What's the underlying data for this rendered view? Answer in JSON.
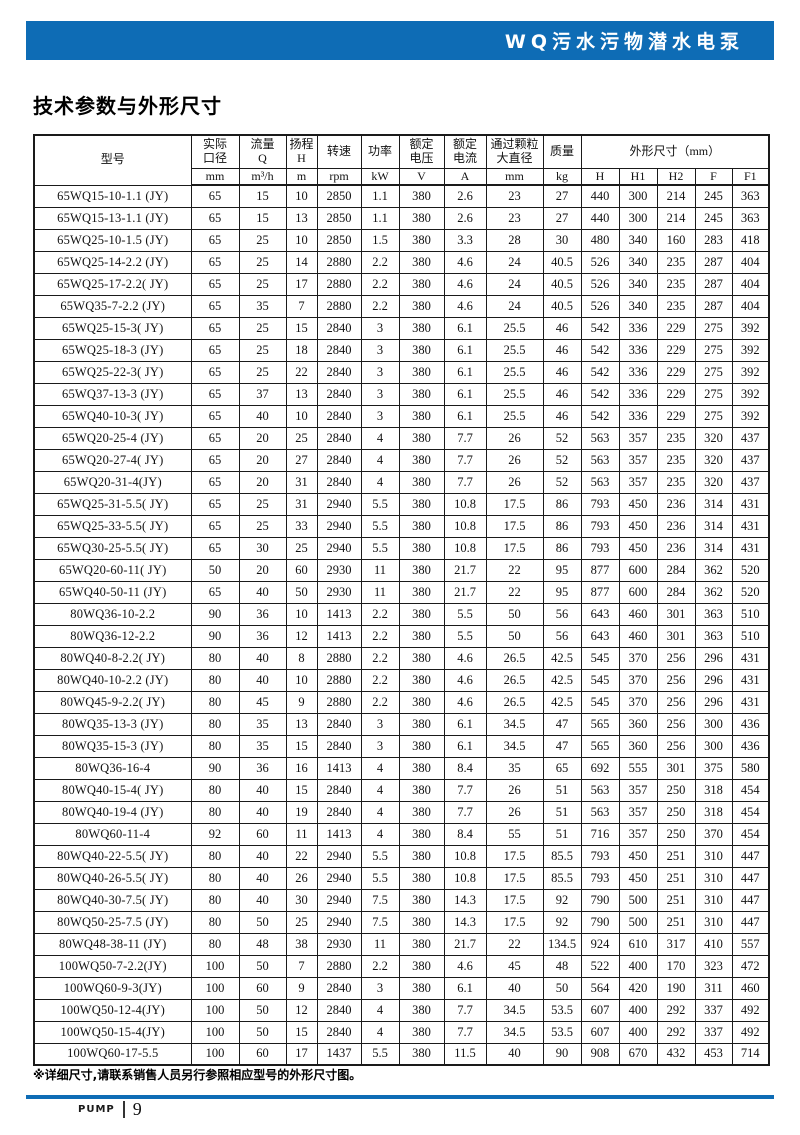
{
  "banner": {
    "title": "WQ污水污物潜水电泵"
  },
  "page_title": "技术参数与外形尺寸",
  "table": {
    "header": {
      "model": "型号",
      "cols": [
        {
          "label": "实际\n口径",
          "unit": "mm"
        },
        {
          "label": "流量\nQ",
          "unit": "m³/h"
        },
        {
          "label": "扬程\nH",
          "unit": "m"
        },
        {
          "label": "转速",
          "unit": "rpm"
        },
        {
          "label": "功率",
          "unit": "kW"
        },
        {
          "label": "额定\n电压",
          "unit": "V"
        },
        {
          "label": "额定\n电流",
          "unit": "A"
        },
        {
          "label": "通过颗粒\n大直径",
          "unit": "mm"
        },
        {
          "label": "质量",
          "unit": "kg"
        }
      ],
      "dims_label": "外形尺寸（mm）",
      "dims": [
        "H",
        "H1",
        "H2",
        "F",
        "F1"
      ]
    },
    "rows": [
      [
        "65WQ15-10-1.1 (JY)",
        "65",
        "15",
        "10",
        "2850",
        "1.1",
        "380",
        "2.6",
        "23",
        "27",
        "440",
        "300",
        "214",
        "245",
        "363"
      ],
      [
        "65WQ15-13-1.1 (JY)",
        "65",
        "15",
        "13",
        "2850",
        "1.1",
        "380",
        "2.6",
        "23",
        "27",
        "440",
        "300",
        "214",
        "245",
        "363"
      ],
      [
        "65WQ25-10-1.5 (JY)",
        "65",
        "25",
        "10",
        "2850",
        "1.5",
        "380",
        "3.3",
        "28",
        "30",
        "480",
        "340",
        "160",
        "283",
        "418"
      ],
      [
        "65WQ25-14-2.2 (JY)",
        "65",
        "25",
        "14",
        "2880",
        "2.2",
        "380",
        "4.6",
        "24",
        "40.5",
        "526",
        "340",
        "235",
        "287",
        "404"
      ],
      [
        "65WQ25-17-2.2( JY)",
        "65",
        "25",
        "17",
        "2880",
        "2.2",
        "380",
        "4.6",
        "24",
        "40.5",
        "526",
        "340",
        "235",
        "287",
        "404"
      ],
      [
        "65WQ35-7-2.2 (JY)",
        "65",
        "35",
        "7",
        "2880",
        "2.2",
        "380",
        "4.6",
        "24",
        "40.5",
        "526",
        "340",
        "235",
        "287",
        "404"
      ],
      [
        "65WQ25-15-3( JY)",
        "65",
        "25",
        "15",
        "2840",
        "3",
        "380",
        "6.1",
        "25.5",
        "46",
        "542",
        "336",
        "229",
        "275",
        "392"
      ],
      [
        "65WQ25-18-3 (JY)",
        "65",
        "25",
        "18",
        "2840",
        "3",
        "380",
        "6.1",
        "25.5",
        "46",
        "542",
        "336",
        "229",
        "275",
        "392"
      ],
      [
        "65WQ25-22-3( JY)",
        "65",
        "25",
        "22",
        "2840",
        "3",
        "380",
        "6.1",
        "25.5",
        "46",
        "542",
        "336",
        "229",
        "275",
        "392"
      ],
      [
        "65WQ37-13-3 (JY)",
        "65",
        "37",
        "13",
        "2840",
        "3",
        "380",
        "6.1",
        "25.5",
        "46",
        "542",
        "336",
        "229",
        "275",
        "392"
      ],
      [
        "65WQ40-10-3( JY)",
        "65",
        "40",
        "10",
        "2840",
        "3",
        "380",
        "6.1",
        "25.5",
        "46",
        "542",
        "336",
        "229",
        "275",
        "392"
      ],
      [
        "65WQ20-25-4 (JY)",
        "65",
        "20",
        "25",
        "2840",
        "4",
        "380",
        "7.7",
        "26",
        "52",
        "563",
        "357",
        "235",
        "320",
        "437"
      ],
      [
        "65WQ20-27-4( JY)",
        "65",
        "20",
        "27",
        "2840",
        "4",
        "380",
        "7.7",
        "26",
        "52",
        "563",
        "357",
        "235",
        "320",
        "437"
      ],
      [
        "65WQ20-31-4(JY)",
        "65",
        "20",
        "31",
        "2840",
        "4",
        "380",
        "7.7",
        "26",
        "52",
        "563",
        "357",
        "235",
        "320",
        "437"
      ],
      [
        "65WQ25-31-5.5( JY)",
        "65",
        "25",
        "31",
        "2940",
        "5.5",
        "380",
        "10.8",
        "17.5",
        "86",
        "793",
        "450",
        "236",
        "314",
        "431"
      ],
      [
        "65WQ25-33-5.5( JY)",
        "65",
        "25",
        "33",
        "2940",
        "5.5",
        "380",
        "10.8",
        "17.5",
        "86",
        "793",
        "450",
        "236",
        "314",
        "431"
      ],
      [
        "65WQ30-25-5.5( JY)",
        "65",
        "30",
        "25",
        "2940",
        "5.5",
        "380",
        "10.8",
        "17.5",
        "86",
        "793",
        "450",
        "236",
        "314",
        "431"
      ],
      [
        "65WQ20-60-11( JY)",
        "50",
        "20",
        "60",
        "2930",
        "11",
        "380",
        "21.7",
        "22",
        "95",
        "877",
        "600",
        "284",
        "362",
        "520"
      ],
      [
        "65WQ40-50-11 (JY)",
        "65",
        "40",
        "50",
        "2930",
        "11",
        "380",
        "21.7",
        "22",
        "95",
        "877",
        "600",
        "284",
        "362",
        "520"
      ],
      [
        "80WQ36-10-2.2",
        "90",
        "36",
        "10",
        "1413",
        "2.2",
        "380",
        "5.5",
        "50",
        "56",
        "643",
        "460",
        "301",
        "363",
        "510"
      ],
      [
        "80WQ36-12-2.2",
        "90",
        "36",
        "12",
        "1413",
        "2.2",
        "380",
        "5.5",
        "50",
        "56",
        "643",
        "460",
        "301",
        "363",
        "510"
      ],
      [
        "80WQ40-8-2.2( JY)",
        "80",
        "40",
        "8",
        "2880",
        "2.2",
        "380",
        "4.6",
        "26.5",
        "42.5",
        "545",
        "370",
        "256",
        "296",
        "431"
      ],
      [
        "80WQ40-10-2.2 (JY)",
        "80",
        "40",
        "10",
        "2880",
        "2.2",
        "380",
        "4.6",
        "26.5",
        "42.5",
        "545",
        "370",
        "256",
        "296",
        "431"
      ],
      [
        "80WQ45-9-2.2( JY)",
        "80",
        "45",
        "9",
        "2880",
        "2.2",
        "380",
        "4.6",
        "26.5",
        "42.5",
        "545",
        "370",
        "256",
        "296",
        "431"
      ],
      [
        "80WQ35-13-3 (JY)",
        "80",
        "35",
        "13",
        "2840",
        "3",
        "380",
        "6.1",
        "34.5",
        "47",
        "565",
        "360",
        "256",
        "300",
        "436"
      ],
      [
        "80WQ35-15-3 (JY)",
        "80",
        "35",
        "15",
        "2840",
        "3",
        "380",
        "6.1",
        "34.5",
        "47",
        "565",
        "360",
        "256",
        "300",
        "436"
      ],
      [
        "80WQ36-16-4",
        "90",
        "36",
        "16",
        "1413",
        "4",
        "380",
        "8.4",
        "35",
        "65",
        "692",
        "555",
        "301",
        "375",
        "580"
      ],
      [
        "80WQ40-15-4( JY)",
        "80",
        "40",
        "15",
        "2840",
        "4",
        "380",
        "7.7",
        "26",
        "51",
        "563",
        "357",
        "250",
        "318",
        "454"
      ],
      [
        "80WQ40-19-4 (JY)",
        "80",
        "40",
        "19",
        "2840",
        "4",
        "380",
        "7.7",
        "26",
        "51",
        "563",
        "357",
        "250",
        "318",
        "454"
      ],
      [
        "80WQ60-11-4",
        "92",
        "60",
        "11",
        "1413",
        "4",
        "380",
        "8.4",
        "55",
        "51",
        "716",
        "357",
        "250",
        "370",
        "454"
      ],
      [
        "80WQ40-22-5.5( JY)",
        "80",
        "40",
        "22",
        "2940",
        "5.5",
        "380",
        "10.8",
        "17.5",
        "85.5",
        "793",
        "450",
        "251",
        "310",
        "447"
      ],
      [
        "80WQ40-26-5.5( JY)",
        "80",
        "40",
        "26",
        "2940",
        "5.5",
        "380",
        "10.8",
        "17.5",
        "85.5",
        "793",
        "450",
        "251",
        "310",
        "447"
      ],
      [
        "80WQ40-30-7.5( JY)",
        "80",
        "40",
        "30",
        "2940",
        "7.5",
        "380",
        "14.3",
        "17.5",
        "92",
        "790",
        "500",
        "251",
        "310",
        "447"
      ],
      [
        "80WQ50-25-7.5 (JY)",
        "80",
        "50",
        "25",
        "2940",
        "7.5",
        "380",
        "14.3",
        "17.5",
        "92",
        "790",
        "500",
        "251",
        "310",
        "447"
      ],
      [
        "80WQ48-38-11 (JY)",
        "80",
        "48",
        "38",
        "2930",
        "11",
        "380",
        "21.7",
        "22",
        "134.5",
        "924",
        "610",
        "317",
        "410",
        "557"
      ],
      [
        "100WQ50-7-2.2(JY)",
        "100",
        "50",
        "7",
        "2880",
        "2.2",
        "380",
        "4.6",
        "45",
        "48",
        "522",
        "400",
        "170",
        "323",
        "472"
      ],
      [
        "100WQ60-9-3(JY)",
        "100",
        "60",
        "9",
        "2840",
        "3",
        "380",
        "6.1",
        "40",
        "50",
        "564",
        "420",
        "190",
        "311",
        "460"
      ],
      [
        "100WQ50-12-4(JY)",
        "100",
        "50",
        "12",
        "2840",
        "4",
        "380",
        "7.7",
        "34.5",
        "53.5",
        "607",
        "400",
        "292",
        "337",
        "492"
      ],
      [
        "100WQ50-15-4(JY)",
        "100",
        "50",
        "15",
        "2840",
        "4",
        "380",
        "7.7",
        "34.5",
        "53.5",
        "607",
        "400",
        "292",
        "337",
        "492"
      ],
      [
        "100WQ60-17-5.5",
        "100",
        "60",
        "17",
        "1437",
        "5.5",
        "380",
        "11.5",
        "40",
        "90",
        "908",
        "670",
        "432",
        "453",
        "714"
      ]
    ]
  },
  "footnote": "※详细尺寸,请联系销售人员另行参照相应型号的外形尺寸图。",
  "footer": {
    "brand": "PUMP",
    "page_number": "9"
  },
  "colors": {
    "accent_blue": "#0e6cb5",
    "border_black": "#1a1a1a"
  }
}
